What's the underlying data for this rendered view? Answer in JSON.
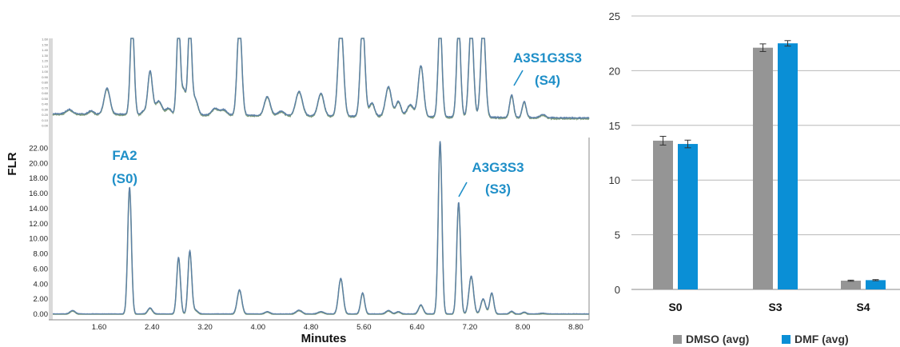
{
  "colors": {
    "trace": "#5b7fa8",
    "trace_overlay": "#7d9b78",
    "label": "#1f8fc8",
    "dmso": "#959595",
    "dmf": "#0a8fd6",
    "grid": "#b8b8b8",
    "axis": "#888888"
  },
  "chromatogram": {
    "ylabel": "FLR",
    "xlabel": "Minutes",
    "x_ticks": [
      "1.60",
      "2.40",
      "3.20",
      "4.00",
      "4.80",
      "5.60",
      "6.40",
      "7.20",
      "8.00",
      "8.80"
    ],
    "lower_y_ticks": [
      "0.00",
      "2.00",
      "4.00",
      "6.00",
      "8.00",
      "10.00",
      "12.00",
      "14.00",
      "16.00",
      "18.00",
      "20.00",
      "22.00"
    ],
    "upper_y_ticks": [
      "0.00",
      "0.10",
      "0.20",
      "0.30",
      "0.40",
      "0.50",
      "0.60",
      "0.70",
      "0.80",
      "0.90",
      "1.00",
      "1.10",
      "1.20",
      "1.30",
      "1.40",
      "1.50",
      "1.60"
    ],
    "labels": {
      "s0_name": "FA2",
      "s0_code": "(S0)",
      "s3_name": "A3G3S3",
      "s3_code": "(S3)",
      "s4_name": "A3S1G3S3",
      "s4_code": "(S4)"
    }
  },
  "chart_data": [
    {
      "type": "line",
      "panel": "chromatogram-zoom",
      "xlim": [
        0.9,
        9.0
      ],
      "ylim": [
        0,
        1.6
      ],
      "ylabel": "",
      "xlabel": "",
      "baseline": 0.22,
      "drift": -0.08,
      "noise": 0.018,
      "peaks": [
        {
          "x": 1.15,
          "h": 0.08,
          "w": 0.05
        },
        {
          "x": 1.48,
          "h": 0.06,
          "w": 0.04
        },
        {
          "x": 1.72,
          "h": 0.48,
          "w": 0.045
        },
        {
          "x": 2.1,
          "h": 1.75,
          "w": 0.03
        },
        {
          "x": 2.27,
          "h": 0.06,
          "w": 0.03
        },
        {
          "x": 2.37,
          "h": 0.8,
          "w": 0.035
        },
        {
          "x": 2.5,
          "h": 0.25,
          "w": 0.05
        },
        {
          "x": 2.65,
          "h": 0.12,
          "w": 0.04
        },
        {
          "x": 2.8,
          "h": 1.75,
          "w": 0.028
        },
        {
          "x": 2.88,
          "h": 0.45,
          "w": 0.03
        },
        {
          "x": 2.97,
          "h": 1.75,
          "w": 0.028
        },
        {
          "x": 3.05,
          "h": 0.3,
          "w": 0.04
        },
        {
          "x": 3.35,
          "h": 0.12,
          "w": 0.05
        },
        {
          "x": 3.48,
          "h": 0.1,
          "w": 0.05
        },
        {
          "x": 3.72,
          "h": 1.75,
          "w": 0.035
        },
        {
          "x": 4.14,
          "h": 0.35,
          "w": 0.045
        },
        {
          "x": 4.35,
          "h": 0.08,
          "w": 0.05
        },
        {
          "x": 4.62,
          "h": 0.45,
          "w": 0.05
        },
        {
          "x": 4.95,
          "h": 0.42,
          "w": 0.045
        },
        {
          "x": 5.25,
          "h": 1.75,
          "w": 0.04
        },
        {
          "x": 5.58,
          "h": 1.75,
          "w": 0.035
        },
        {
          "x": 5.72,
          "h": 0.25,
          "w": 0.04
        },
        {
          "x": 5.97,
          "h": 0.55,
          "w": 0.045
        },
        {
          "x": 6.12,
          "h": 0.28,
          "w": 0.04
        },
        {
          "x": 6.3,
          "h": 0.22,
          "w": 0.05
        },
        {
          "x": 6.46,
          "h": 0.95,
          "w": 0.04
        },
        {
          "x": 6.75,
          "h": 1.75,
          "w": 0.03
        },
        {
          "x": 7.03,
          "h": 1.75,
          "w": 0.03
        },
        {
          "x": 7.22,
          "h": 1.75,
          "w": 0.035
        },
        {
          "x": 7.4,
          "h": 1.75,
          "w": 0.035
        },
        {
          "x": 7.83,
          "h": 0.42,
          "w": 0.03
        },
        {
          "x": 8.02,
          "h": 0.3,
          "w": 0.03
        },
        {
          "x": 8.3,
          "h": 0.06,
          "w": 0.04
        }
      ]
    },
    {
      "type": "line",
      "panel": "chromatogram-full",
      "xlim": [
        0.9,
        9.0
      ],
      "ylim": [
        0,
        23.0
      ],
      "ylabel": "FLR",
      "xlabel": "Minutes",
      "baseline": 0.05,
      "drift": 0.0,
      "noise": 0.04,
      "peaks": [
        {
          "x": 1.2,
          "h": 0.45,
          "w": 0.04
        },
        {
          "x": 2.06,
          "h": 16.8,
          "w": 0.028
        },
        {
          "x": 2.37,
          "h": 0.8,
          "w": 0.035
        },
        {
          "x": 2.8,
          "h": 7.5,
          "w": 0.028
        },
        {
          "x": 2.97,
          "h": 8.3,
          "w": 0.028
        },
        {
          "x": 3.05,
          "h": 0.5,
          "w": 0.04
        },
        {
          "x": 3.72,
          "h": 3.2,
          "w": 0.035
        },
        {
          "x": 4.14,
          "h": 0.3,
          "w": 0.04
        },
        {
          "x": 4.62,
          "h": 0.5,
          "w": 0.045
        },
        {
          "x": 4.95,
          "h": 0.3,
          "w": 0.045
        },
        {
          "x": 5.25,
          "h": 4.7,
          "w": 0.035
        },
        {
          "x": 5.58,
          "h": 2.8,
          "w": 0.03
        },
        {
          "x": 5.97,
          "h": 0.45,
          "w": 0.04
        },
        {
          "x": 6.12,
          "h": 0.3,
          "w": 0.035
        },
        {
          "x": 6.46,
          "h": 1.2,
          "w": 0.035
        },
        {
          "x": 6.75,
          "h": 22.9,
          "w": 0.028
        },
        {
          "x": 7.03,
          "h": 14.8,
          "w": 0.028
        },
        {
          "x": 7.22,
          "h": 5.0,
          "w": 0.035
        },
        {
          "x": 7.4,
          "h": 2.0,
          "w": 0.035
        },
        {
          "x": 7.53,
          "h": 2.8,
          "w": 0.03
        },
        {
          "x": 7.83,
          "h": 0.35,
          "w": 0.03
        },
        {
          "x": 8.02,
          "h": 0.25,
          "w": 0.03
        },
        {
          "x": 8.3,
          "h": 0.1,
          "w": 0.04
        }
      ]
    },
    {
      "type": "bar",
      "categories": [
        "S0",
        "S3",
        "S4"
      ],
      "series": [
        {
          "name": "DMSO (avg)",
          "values": [
            13.6,
            22.1,
            0.8
          ],
          "errors": [
            0.4,
            0.35,
            0.05
          ],
          "color": "#959595"
        },
        {
          "name": "DMF (avg)",
          "values": [
            13.3,
            22.5,
            0.85
          ],
          "errors": [
            0.35,
            0.25,
            0.05
          ],
          "color": "#0a8fd6"
        }
      ],
      "ylim": [
        0,
        25
      ],
      "y_ticks": [
        "0",
        "5",
        "10",
        "15",
        "20",
        "25"
      ],
      "grid": true,
      "legend": "bottom"
    }
  ]
}
